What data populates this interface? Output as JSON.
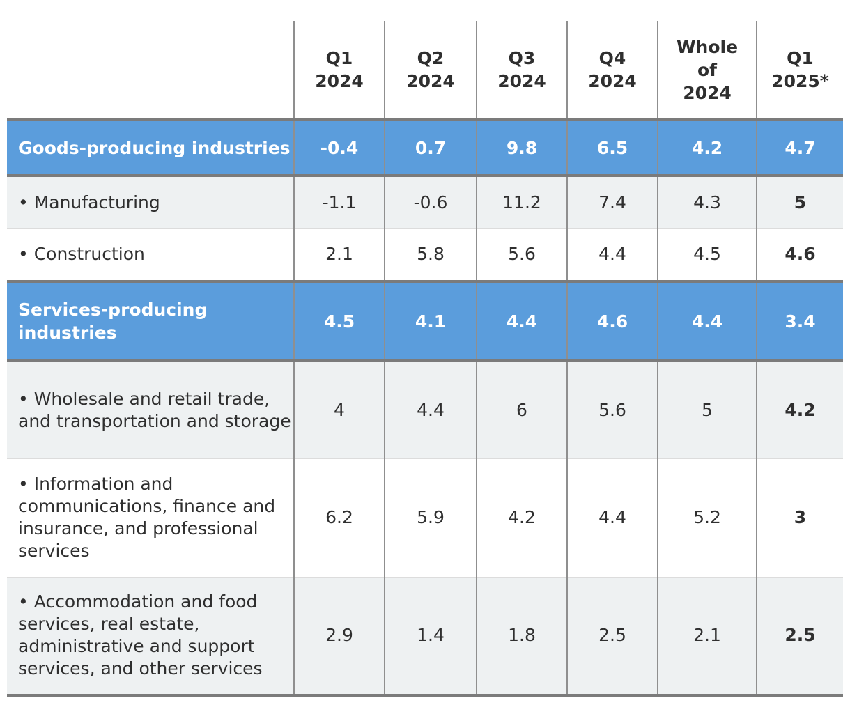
{
  "headers": [
    [
      ""
    ],
    [
      "Q1",
      "2024"
    ],
    [
      "Q2",
      "2024"
    ],
    [
      "Q3",
      "2024"
    ],
    [
      "Q4",
      "2024"
    ],
    [
      "Whole",
      "of",
      "2024"
    ],
    [
      "Q1",
      "2025*"
    ]
  ],
  "rows": [
    {
      "kind": "group",
      "label": "Goods-producing industries",
      "values": [
        "-0.4",
        "0.7",
        "9.8",
        "6.5",
        "4.2",
        "4.7"
      ]
    },
    {
      "kind": "sub",
      "label": "• Manufacturing",
      "values": [
        "-1.1",
        "-0.6",
        "11.2",
        "7.4",
        "4.3",
        "5"
      ]
    },
    {
      "kind": "sub",
      "label": "• Construction",
      "values": [
        "2.1",
        "5.8",
        "5.6",
        "4.4",
        "4.5",
        "4.6"
      ]
    },
    {
      "kind": "group",
      "label": "Services-producing industries",
      "values": [
        "4.5",
        "4.1",
        "4.4",
        "4.6",
        "4.4",
        "3.4"
      ]
    },
    {
      "kind": "sub",
      "label": "• Wholesale and retail trade, and transportation and storage",
      "values": [
        "4",
        "4.4",
        "6",
        "5.6",
        "5",
        "4.2"
      ]
    },
    {
      "kind": "sub",
      "label": "• Information and communications, finance and insurance, and professional services",
      "values": [
        "6.2",
        "5.9",
        "4.2",
        "4.4",
        "5.2",
        "3"
      ]
    },
    {
      "kind": "sub",
      "label": "• Accommodation and food services, real estate, administrative and support services, and other services",
      "values": [
        "2.9",
        "1.4",
        "1.8",
        "2.5",
        "2.1",
        "2.5"
      ]
    }
  ],
  "colors": {
    "group_bg": "#5b9ddc",
    "shaded_row_bg": "#eef1f2",
    "rule": "#7b7b7b"
  }
}
